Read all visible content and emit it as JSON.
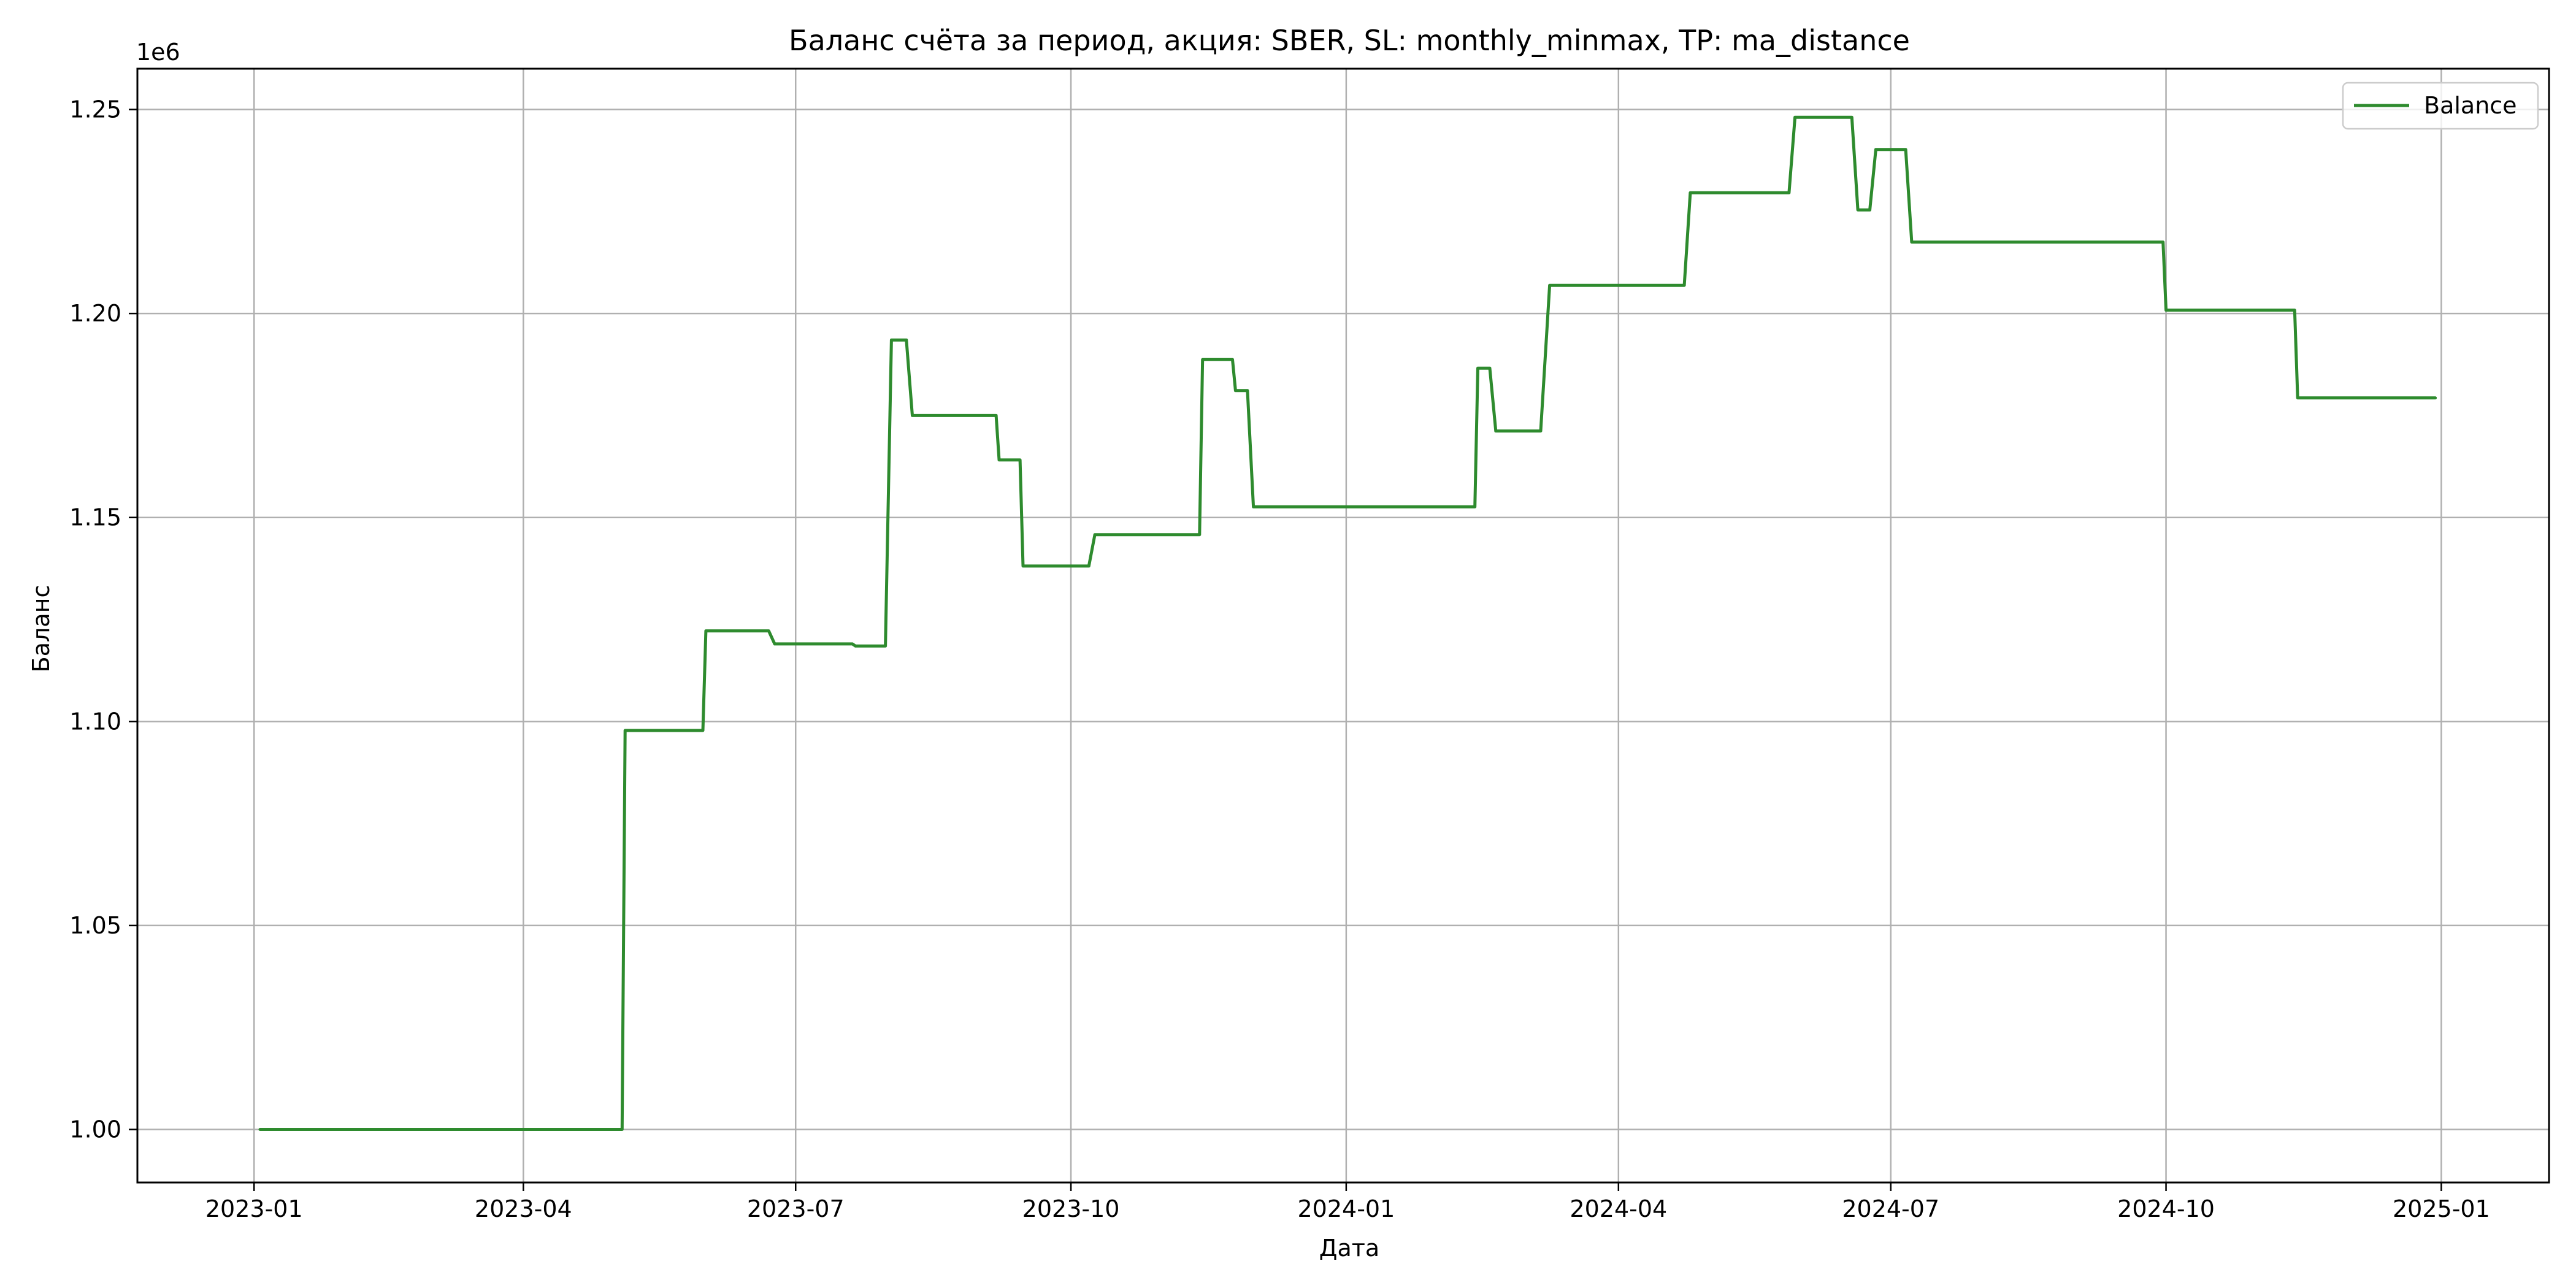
{
  "chart_data": {
    "type": "line",
    "title": "Баланс счёта за период, акция: SBER, SL: monthly_minmax, TP: ma_distance",
    "xlabel": "Дата",
    "ylabel": "Баланс",
    "y_offset_label": "1e6",
    "xlim": [
      "2022-11-23",
      "2025-02-06"
    ],
    "ylim": [
      0.987,
      1.26
    ],
    "x_ticks": [
      {
        "date": "2023-01-01",
        "label": "2023-01"
      },
      {
        "date": "2023-04-01",
        "label": "2023-04"
      },
      {
        "date": "2023-07-01",
        "label": "2023-07"
      },
      {
        "date": "2023-10-01",
        "label": "2023-10"
      },
      {
        "date": "2024-01-01",
        "label": "2024-01"
      },
      {
        "date": "2024-04-01",
        "label": "2024-04"
      },
      {
        "date": "2024-07-01",
        "label": "2024-07"
      },
      {
        "date": "2024-10-01",
        "label": "2024-10"
      },
      {
        "date": "2025-01-01",
        "label": "2025-01"
      }
    ],
    "y_ticks": [
      {
        "value": 1.0,
        "label": "1.00"
      },
      {
        "value": 1.05,
        "label": "1.05"
      },
      {
        "value": 1.1,
        "label": "1.10"
      },
      {
        "value": 1.15,
        "label": "1.15"
      },
      {
        "value": 1.2,
        "label": "1.20"
      },
      {
        "value": 1.25,
        "label": "1.25"
      }
    ],
    "grid": true,
    "legend_position": "top-right",
    "series": [
      {
        "name": "Balance",
        "color": "#2e8b2e",
        "x": [
          "2023-01-03",
          "2023-05-04",
          "2023-05-05",
          "2023-05-31",
          "2023-06-01",
          "2023-06-22",
          "2023-06-24",
          "2023-07-20",
          "2023-07-21",
          "2023-07-31",
          "2023-08-02",
          "2023-08-07",
          "2023-08-09",
          "2023-09-06",
          "2023-09-07",
          "2023-09-14",
          "2023-09-15",
          "2023-10-07",
          "2023-10-09",
          "2023-11-13",
          "2023-11-14",
          "2023-11-24",
          "2023-11-25",
          "2023-11-29",
          "2023-12-01",
          "2024-02-13",
          "2024-02-14",
          "2024-02-18",
          "2024-02-20",
          "2024-03-06",
          "2024-03-09",
          "2024-04-23",
          "2024-04-25",
          "2024-05-28",
          "2024-05-30",
          "2024-06-18",
          "2024-06-20",
          "2024-06-24",
          "2024-06-26",
          "2024-07-06",
          "2024-07-08",
          "2024-09-30",
          "2024-10-01",
          "2024-11-13",
          "2024-11-14",
          "2024-12-30"
        ],
        "values": [
          1.0,
          1.0,
          1.0978,
          1.0978,
          1.1222,
          1.1222,
          1.119,
          1.119,
          1.1185,
          1.1185,
          1.1935,
          1.1935,
          1.175,
          1.175,
          1.1641,
          1.1641,
          1.1381,
          1.1381,
          1.1458,
          1.1458,
          1.1887,
          1.1887,
          1.1811,
          1.1811,
          1.1526,
          1.1526,
          1.1866,
          1.1866,
          1.1712,
          1.1712,
          1.2069,
          1.2069,
          1.2296,
          1.2296,
          1.2481,
          1.2481,
          1.2254,
          1.2254,
          1.2402,
          1.2402,
          1.2175,
          1.2175,
          1.2008,
          1.2008,
          1.1793,
          1.1793
        ]
      }
    ]
  }
}
